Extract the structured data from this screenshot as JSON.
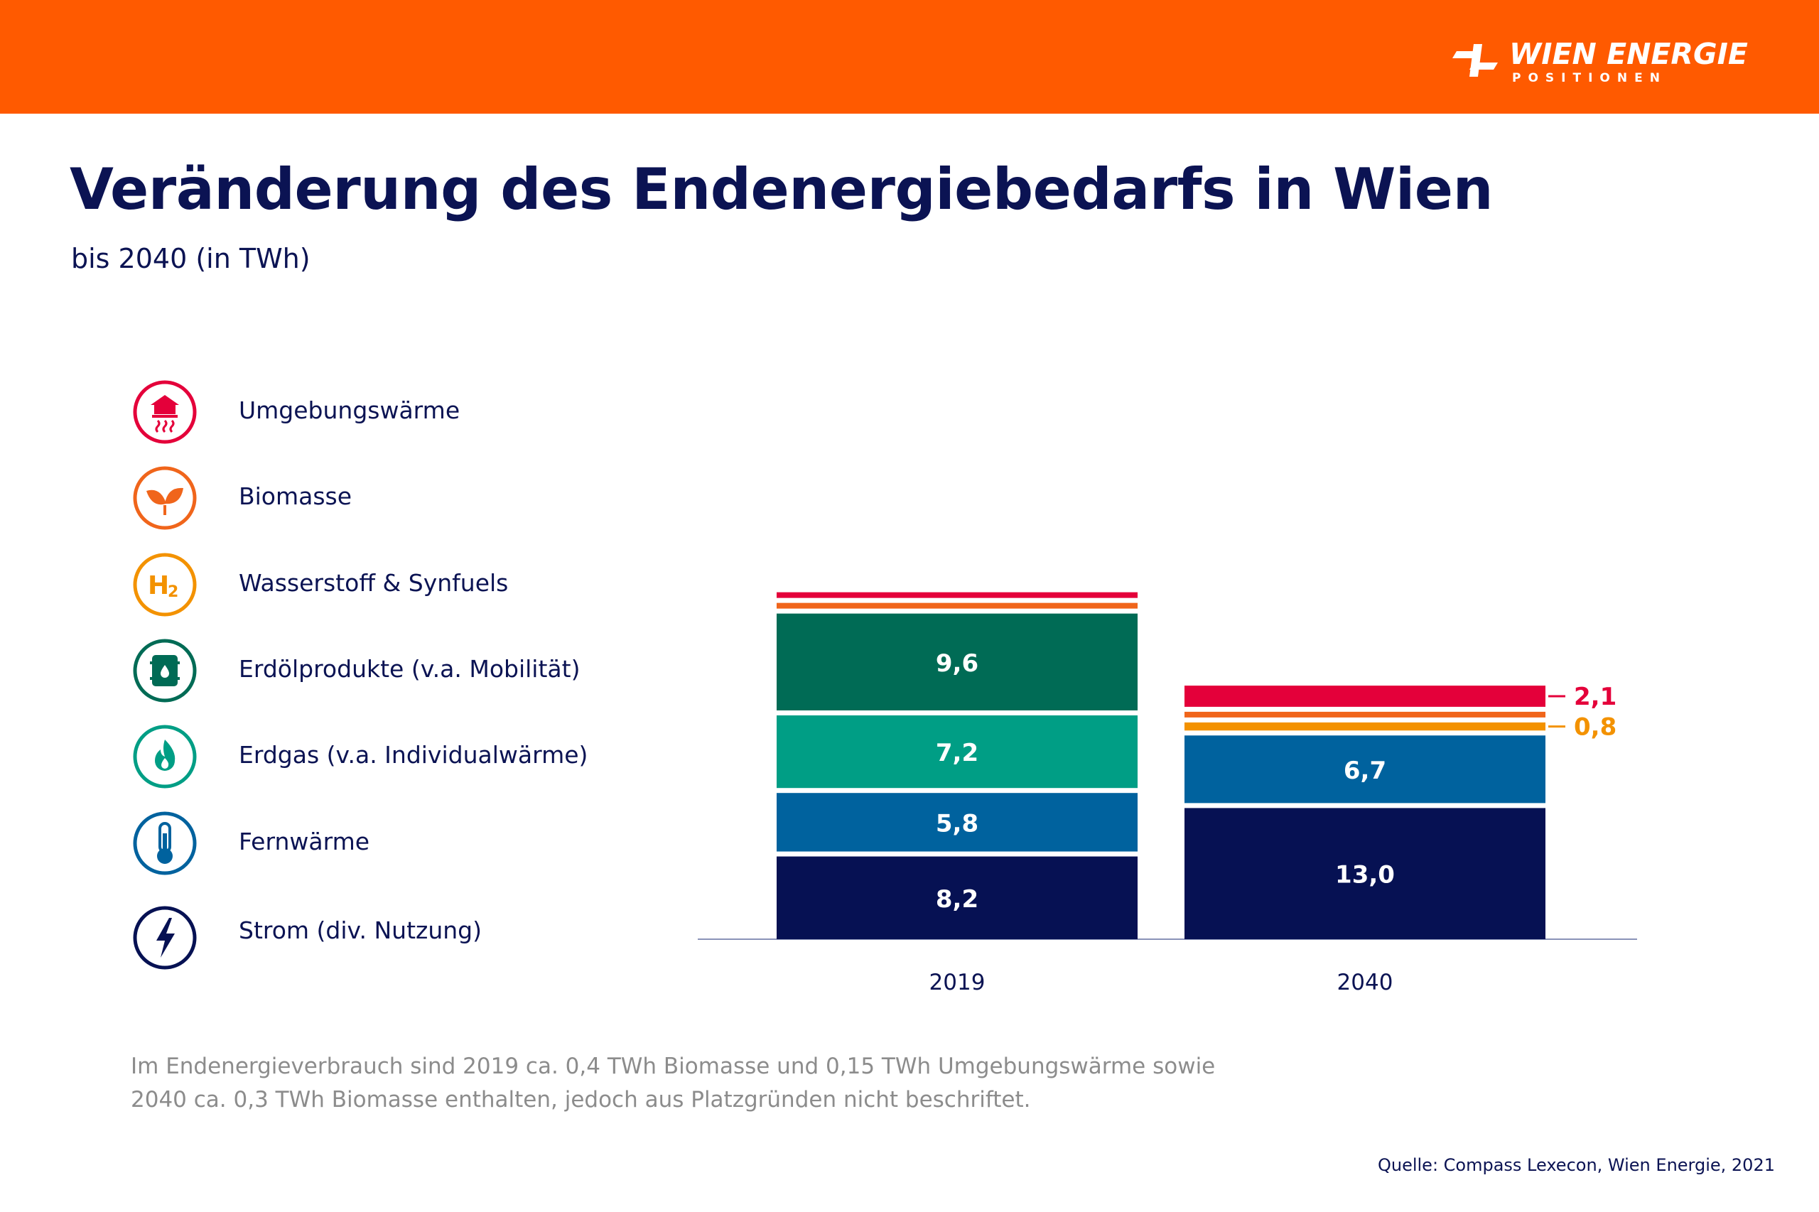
{
  "header": {
    "brand": "WIEN ENERGIE",
    "brand_sub": "POSITIONEN",
    "color": "#ff5a00"
  },
  "title": "Veränderung des Endenergiebedarfs in Wien",
  "subtitle": "bis 2040 (in TWh)",
  "legend": [
    {
      "label": "Umgebungswärme",
      "icon": "house-heat-icon",
      "color": "#e4003a"
    },
    {
      "label": "Biomasse",
      "icon": "leaves-icon",
      "color": "#f0651b"
    },
    {
      "label": "Wasserstoff & Synfuels",
      "icon": "h2-icon",
      "color": "#f39200"
    },
    {
      "label": "Erdölprodukte (v.a. Mobilität)",
      "icon": "oil-barrel-icon",
      "color": "#006b55"
    },
    {
      "label": "Erdgas (v.a. Individualwärme)",
      "icon": "flame-icon",
      "color": "#009e85"
    },
    {
      "label": "Fernwärme",
      "icon": "thermometer-icon",
      "color": "#00629e"
    },
    {
      "label": "Strom (div. Nutzung)",
      "icon": "lightning-icon",
      "color": "#061153"
    }
  ],
  "chart_data": {
    "type": "bar",
    "stacked": true,
    "categories": [
      "2019",
      "2040"
    ],
    "series": [
      {
        "name": "Strom (div. Nutzung)",
        "color": "#061153",
        "values": [
          8.2,
          13.0
        ],
        "labels": [
          "8,2",
          "13,0"
        ]
      },
      {
        "name": "Fernwärme",
        "color": "#00629e",
        "values": [
          5.8,
          6.7
        ],
        "labels": [
          "5,8",
          "6,7"
        ]
      },
      {
        "name": "Erdgas (v.a. Individualwärme)",
        "color": "#009e85",
        "values": [
          7.2,
          0
        ],
        "labels": [
          "7,2",
          ""
        ]
      },
      {
        "name": "Erdölprodukte (v.a. Mobilität)",
        "color": "#006b55",
        "values": [
          9.6,
          0
        ],
        "labels": [
          "9,6",
          ""
        ]
      },
      {
        "name": "Wasserstoff & Synfuels",
        "color": "#f39200",
        "values": [
          0,
          0.8
        ],
        "labels": [
          "",
          "0,8"
        ]
      },
      {
        "name": "Biomasse",
        "color": "#f0651b",
        "values": [
          0.4,
          0.3
        ],
        "labels": [
          "",
          ""
        ]
      },
      {
        "name": "Umgebungswärme",
        "color": "#e4003a",
        "values": [
          0.15,
          2.1
        ],
        "labels": [
          "",
          "2,1"
        ]
      }
    ],
    "ylim": [
      0,
      33
    ],
    "xlabel": "",
    "ylabel": "TWh"
  },
  "note": "Im Endenergieverbrauch sind 2019 ca. 0,4 TWh Biomasse und 0,15 TWh Umgebungswärme sowie 2040 ca. 0,3 TWh Biomasse enthalten, jedoch aus Platzgründen nicht beschriftet.",
  "source": "Quelle: Compass Lexecon, Wien Energie, 2021"
}
